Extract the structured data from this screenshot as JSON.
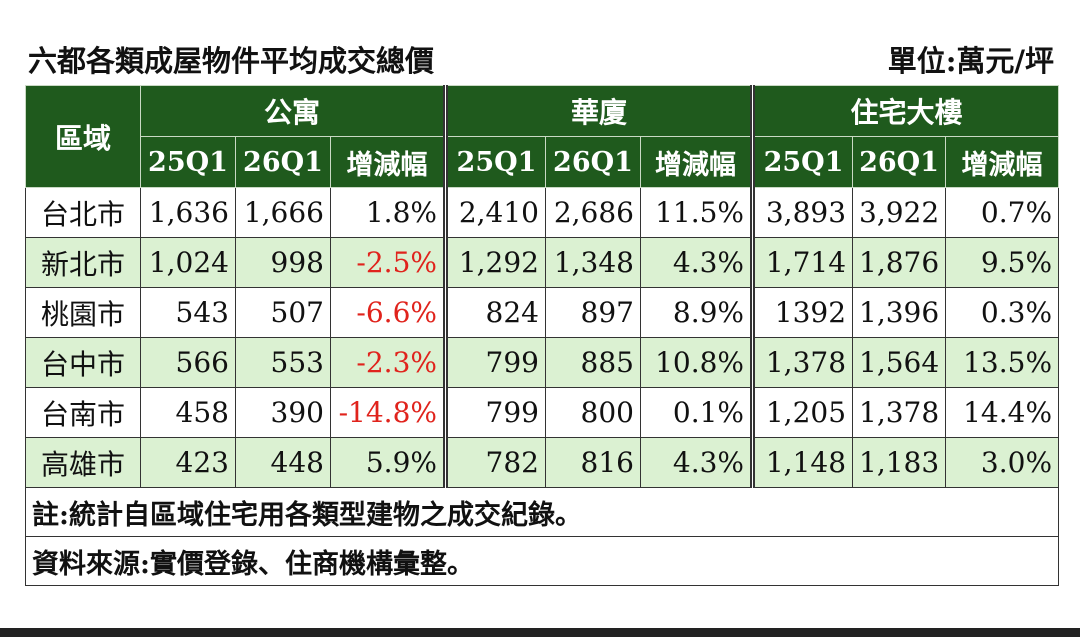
{
  "header": {
    "title": "六都各類成屋物件平均成交總價",
    "unit": "單位:萬元/坪"
  },
  "table": {
    "region_header": "區域",
    "groups": [
      {
        "name": "公寓",
        "columns": [
          "25Q1",
          "26Q1",
          "增減幅"
        ]
      },
      {
        "name": "華廈",
        "columns": [
          "25Q1",
          "26Q1",
          "增減幅"
        ]
      },
      {
        "name": "住宅大樓",
        "columns": [
          "25Q1",
          "26Q1",
          "增減幅"
        ]
      }
    ],
    "rows": [
      [
        "台北市",
        "1,636",
        "1,666",
        "1.8%",
        "2,410",
        "2,686",
        "11.5%",
        "3,893",
        "3,922",
        "0.7%"
      ],
      [
        "新北市",
        "1,024",
        "998",
        "-2.5%",
        "1,292",
        "1,348",
        "4.3%",
        "1,714",
        "1,876",
        "9.5%"
      ],
      [
        "桃園市",
        "543",
        "507",
        "-6.6%",
        "824",
        "897",
        "8.9%",
        "1392",
        "1,396",
        "0.3%"
      ],
      [
        "台中市",
        "566",
        "553",
        "-2.3%",
        "799",
        "885",
        "10.8%",
        "1,378",
        "1,564",
        "13.5%"
      ],
      [
        "台南市",
        "458",
        "390",
        "-14.8%",
        "799",
        "800",
        "0.1%",
        "1,205",
        "1,378",
        "14.4%"
      ],
      [
        "高雄市",
        "423",
        "448",
        "5.9%",
        "782",
        "816",
        "4.3%",
        "1,148",
        "1,183",
        "3.0%"
      ]
    ],
    "notes": [
      "註:統計自區域住宅用各類型建物之成交紀錄。",
      "資料來源:實價登錄、住商機構彙整。"
    ]
  }
}
